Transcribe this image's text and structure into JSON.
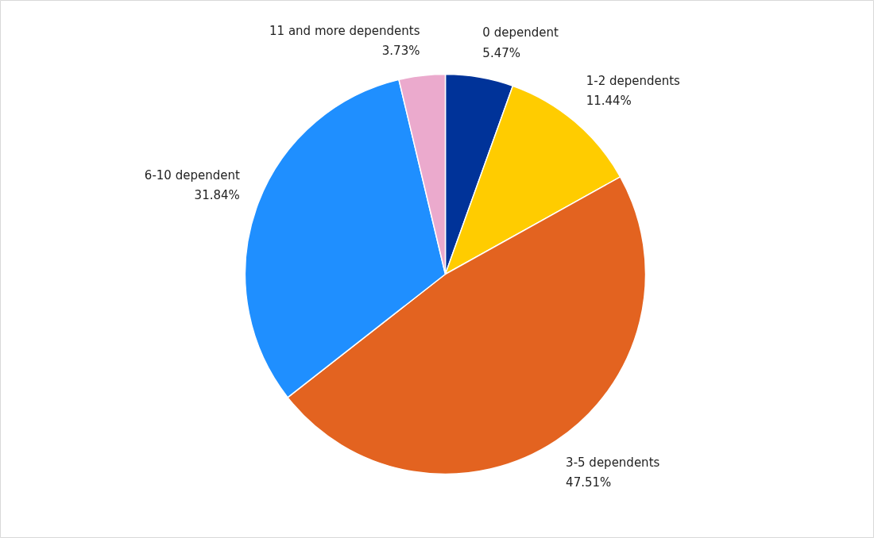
{
  "chart_data": {
    "type": "pie",
    "categories": [
      "0 dependent",
      "1-2 dependents",
      "3-5 dependents",
      "6-10 dependent",
      "11 and more dependents"
    ],
    "values": [
      5.47,
      11.44,
      47.51,
      31.84,
      3.73
    ],
    "colors": [
      "#003399",
      "#ffcc00",
      "#e36320",
      "#1f8fff",
      "#ebaacd"
    ],
    "value_labels": [
      "5.47%",
      "11.44%",
      "47.51%",
      "31.84%",
      "3.73%"
    ]
  }
}
